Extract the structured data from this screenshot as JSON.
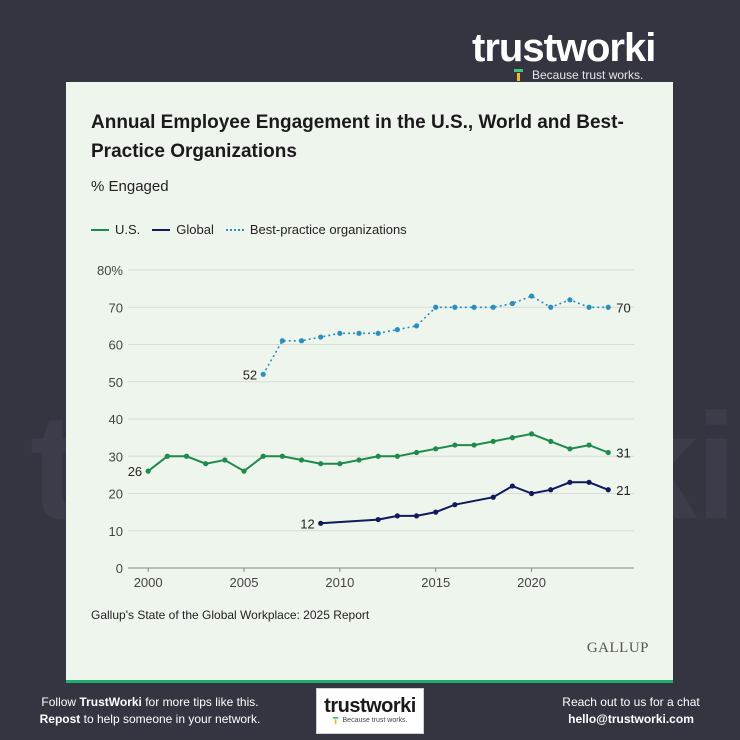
{
  "brand": {
    "name": "trustworki",
    "tagline": "Because trust works."
  },
  "watermark": "trustworki",
  "card": {
    "title": "Annual Employee Engagement in the U.S., World and Best-Practice Organizations",
    "subtitle": "% Engaged",
    "source": "Gallup's State of the Global Workplace: 2025 Report",
    "publisher": "GALLUP"
  },
  "colors": {
    "us": "#1e8a4c",
    "global": "#0e1a5c",
    "best": "#2a8fbf",
    "background": "#353542",
    "card": "#eef5ec",
    "accent": "#1fae6e"
  },
  "chart_data": {
    "type": "line",
    "title": "Annual Employee Engagement in the U.S., World and Best-Practice Organizations",
    "ylabel": "% Engaged",
    "ylim": [
      0,
      80
    ],
    "xlim": [
      1999,
      2025
    ],
    "y_ticks": [
      "0",
      "10",
      "20",
      "30",
      "40",
      "50",
      "60",
      "70",
      "80%"
    ],
    "x_ticks": [
      "2000",
      "2005",
      "2010",
      "2015",
      "2020"
    ],
    "series": [
      {
        "name": "U.S.",
        "style": "solid",
        "x": [
          2000,
          2001,
          2002,
          2003,
          2004,
          2005,
          2006,
          2007,
          2008,
          2009,
          2010,
          2011,
          2012,
          2013,
          2014,
          2015,
          2016,
          2017,
          2018,
          2019,
          2020,
          2021,
          2022,
          2023,
          2024
        ],
        "values": [
          26,
          30,
          30,
          28,
          29,
          26,
          30,
          30,
          29,
          28,
          28,
          29,
          30,
          30,
          31,
          32,
          33,
          33,
          34,
          35,
          36,
          34,
          32,
          33,
          31
        ],
        "start_label": "26",
        "end_label": "31"
      },
      {
        "name": "Global",
        "style": "solid",
        "x": [
          2009,
          2012,
          2013,
          2014,
          2015,
          2016,
          2018,
          2019,
          2020,
          2021,
          2022,
          2023,
          2024
        ],
        "values": [
          12,
          13,
          14,
          14,
          15,
          17,
          19,
          22,
          20,
          21,
          23,
          23,
          21
        ],
        "start_label": "12",
        "end_label": "21"
      },
      {
        "name": "Best-practice organizations",
        "style": "dotted",
        "x": [
          2006,
          2007,
          2008,
          2009,
          2010,
          2011,
          2012,
          2013,
          2014,
          2015,
          2016,
          2017,
          2018,
          2019,
          2020,
          2021,
          2022,
          2023,
          2024
        ],
        "values": [
          52,
          61,
          61,
          62,
          63,
          63,
          63,
          64,
          65,
          70,
          70,
          70,
          70,
          71,
          73,
          70,
          72,
          70,
          70
        ],
        "start_label": "52",
        "end_label": "70"
      }
    ]
  },
  "footer": {
    "left_line1_pre": "Follow ",
    "left_brand": "TrustWorki",
    "left_line1_post": " for more tips like this.",
    "left_line2_bold": "Repost",
    "left_line2_post": " to help someone in your network.",
    "right_line1": "Reach out to us for a chat",
    "right_email": "hello@trustworki.com",
    "logo_name": "trustworki",
    "logo_tag": "Because trust works."
  }
}
